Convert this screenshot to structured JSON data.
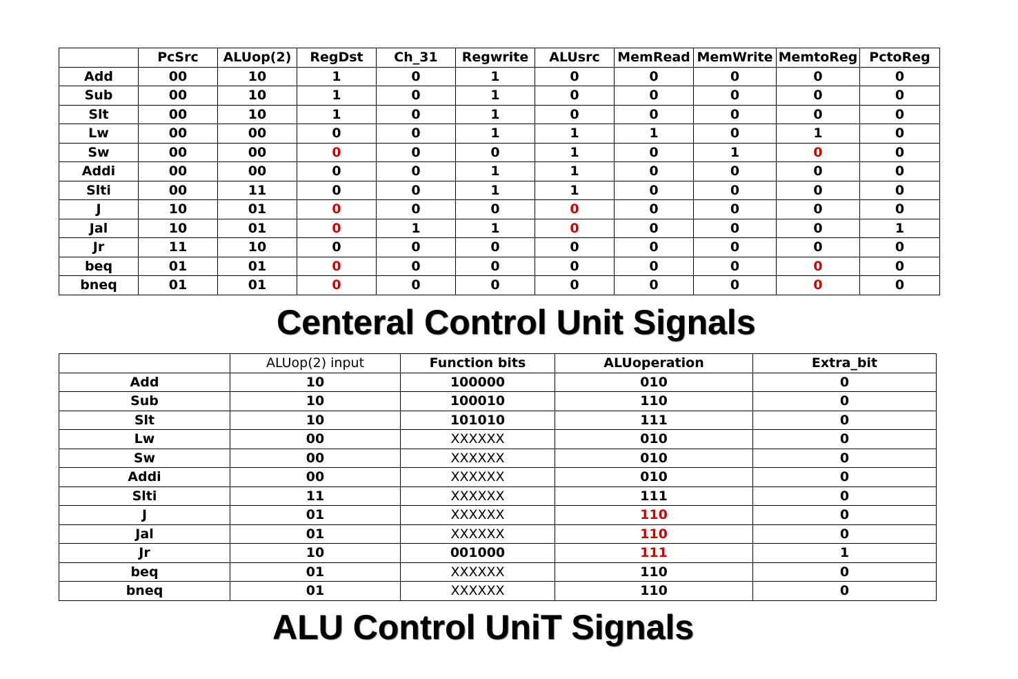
{
  "ccu": {
    "title": "Centeral Control Unit Signals",
    "headers": [
      "",
      "PcSrc",
      "ALUop(2)",
      "RegDst",
      "Ch_31",
      "Regwrite",
      "ALUsrc",
      "MemRead",
      "MemWrite",
      "MemtoReg",
      "PctoReg"
    ],
    "rows": [
      {
        "name": "Add",
        "vals": [
          "00",
          "10",
          "1",
          "0",
          "1",
          "0",
          "0",
          "0",
          "0",
          "0"
        ]
      },
      {
        "name": "Sub",
        "vals": [
          "00",
          "10",
          "1",
          "0",
          "1",
          "0",
          "0",
          "0",
          "0",
          "0"
        ]
      },
      {
        "name": "Slt",
        "vals": [
          "00",
          "10",
          "1",
          "0",
          "1",
          "0",
          "0",
          "0",
          "0",
          "0"
        ]
      },
      {
        "name": "Lw",
        "vals": [
          "00",
          "00",
          "0",
          "0",
          "1",
          "1",
          "1",
          "0",
          "1",
          "0"
        ]
      },
      {
        "name": "Sw",
        "vals": [
          "00",
          "00",
          "0",
          "0",
          "0",
          "1",
          "0",
          "1",
          "0",
          "0"
        ],
        "red": [
          2,
          8
        ]
      },
      {
        "name": "Addi",
        "vals": [
          "00",
          "00",
          "0",
          "0",
          "1",
          "1",
          "0",
          "0",
          "0",
          "0"
        ]
      },
      {
        "name": "Slti",
        "vals": [
          "00",
          "11",
          "0",
          "0",
          "1",
          "1",
          "0",
          "0",
          "0",
          "0"
        ]
      },
      {
        "name": "J",
        "vals": [
          "10",
          "01",
          "0",
          "0",
          "0",
          "0",
          "0",
          "0",
          "0",
          "0"
        ],
        "red": [
          2,
          5
        ]
      },
      {
        "name": "Jal",
        "vals": [
          "10",
          "01",
          "0",
          "1",
          "1",
          "0",
          "0",
          "0",
          "0",
          "1"
        ],
        "red": [
          2,
          5
        ]
      },
      {
        "name": "Jr",
        "vals": [
          "11",
          "10",
          "0",
          "0",
          "0",
          "0",
          "0",
          "0",
          "0",
          "0"
        ]
      },
      {
        "name": "beq",
        "vals": [
          "01",
          "01",
          "0",
          "0",
          "0",
          "0",
          "0",
          "0",
          "0",
          "0"
        ],
        "red": [
          2,
          8
        ]
      },
      {
        "name": "bneq",
        "vals": [
          "01",
          "01",
          "0",
          "0",
          "0",
          "0",
          "0",
          "0",
          "0",
          "0"
        ],
        "red": [
          2,
          8
        ]
      }
    ]
  },
  "alu": {
    "title": "ALU Control UniT Signals",
    "headers": [
      "",
      "ALUop(2) input",
      "Function bits",
      "ALUoperation",
      "Extra_bit"
    ],
    "rows": [
      {
        "name": "Add",
        "vals": [
          "10",
          "100000",
          "010",
          "0"
        ]
      },
      {
        "name": "Sub",
        "vals": [
          "10",
          "100010",
          "110",
          "0"
        ]
      },
      {
        "name": "Slt",
        "vals": [
          "10",
          "101010",
          "111",
          "0"
        ]
      },
      {
        "name": "Lw",
        "vals": [
          "00",
          "XXXXXX",
          "010",
          "0"
        ]
      },
      {
        "name": "Sw",
        "vals": [
          "00",
          "XXXXXX",
          "010",
          "0"
        ]
      },
      {
        "name": "Addi",
        "vals": [
          "00",
          "XXXXXX",
          "010",
          "0"
        ]
      },
      {
        "name": "Slti",
        "vals": [
          "11",
          "XXXXXX",
          "111",
          "0"
        ]
      },
      {
        "name": "J",
        "vals": [
          "01",
          "XXXXXX",
          "110",
          "0"
        ],
        "red": [
          2
        ]
      },
      {
        "name": "Jal",
        "vals": [
          "01",
          "XXXXXX",
          "110",
          "0"
        ],
        "red": [
          2
        ]
      },
      {
        "name": "Jr",
        "vals": [
          "10",
          "001000",
          "111",
          "1"
        ],
        "red": [
          2
        ]
      },
      {
        "name": "beq",
        "vals": [
          "01",
          "XXXXXX",
          "110",
          "0"
        ]
      },
      {
        "name": "bneq",
        "vals": [
          "01",
          "XXXXXX",
          "110",
          "0"
        ]
      }
    ]
  },
  "colors": {
    "highlight": "#cc0000",
    "text": "#000000"
  }
}
